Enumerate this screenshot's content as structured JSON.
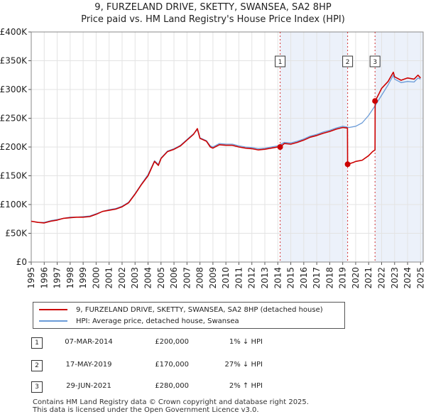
{
  "title_line1": "9, FURZELAND DRIVE, SKETTY, SWANSEA, SA2 8HP",
  "title_line2": "Price paid vs. HM Land Registry's House Price Index (HPI)",
  "chart_data": {
    "type": "line",
    "title": "9, FURZELAND DRIVE, SKETTY, SWANSEA, SA2 8HP",
    "subtitle": "Price paid vs. HM Land Registry's House Price Index (HPI)",
    "xlabel": "",
    "ylabel": "",
    "xlim": [
      1995.0,
      2025.2
    ],
    "ylim": [
      0,
      400000
    ],
    "y_ticks": [
      0,
      50000,
      100000,
      150000,
      200000,
      250000,
      300000,
      350000,
      400000
    ],
    "y_tick_labels": [
      "£0",
      "£50K",
      "£100K",
      "£150K",
      "£200K",
      "£250K",
      "£300K",
      "£350K",
      "£400K"
    ],
    "x_ticks": [
      1995,
      1996,
      1997,
      1998,
      1999,
      2000,
      2001,
      2002,
      2003,
      2004,
      2005,
      2006,
      2007,
      2008,
      2009,
      2010,
      2011,
      2012,
      2013,
      2014,
      2015,
      2016,
      2017,
      2018,
      2019,
      2020,
      2021,
      2022,
      2023,
      2024,
      2025
    ],
    "grid": true,
    "legend_position": "below",
    "series": [
      {
        "name": "9, FURZELAND DRIVE, SKETTY, SWANSEA, SA2 8HP (detached house)",
        "color": "#cc0000",
        "points": [
          [
            1995.0,
            71000
          ],
          [
            1995.5,
            69000
          ],
          [
            1996.0,
            68000
          ],
          [
            1996.5,
            71000
          ],
          [
            1997.0,
            73000
          ],
          [
            1997.5,
            76000
          ],
          [
            1998.0,
            77000
          ],
          [
            1998.5,
            78000
          ],
          [
            1999.0,
            78000
          ],
          [
            1999.5,
            79000
          ],
          [
            2000.0,
            83000
          ],
          [
            2000.5,
            88000
          ],
          [
            2001.0,
            90000
          ],
          [
            2001.5,
            92000
          ],
          [
            2002.0,
            96000
          ],
          [
            2002.5,
            103000
          ],
          [
            2003.0,
            118000
          ],
          [
            2003.5,
            135000
          ],
          [
            2004.0,
            150000
          ],
          [
            2004.5,
            175000
          ],
          [
            2004.8,
            168000
          ],
          [
            2005.0,
            180000
          ],
          [
            2005.5,
            192000
          ],
          [
            2006.0,
            196000
          ],
          [
            2006.5,
            202000
          ],
          [
            2007.0,
            212000
          ],
          [
            2007.5,
            222000
          ],
          [
            2007.8,
            232000
          ],
          [
            2008.0,
            215000
          ],
          [
            2008.5,
            210000
          ],
          [
            2008.8,
            200000
          ],
          [
            2009.0,
            198000
          ],
          [
            2009.5,
            204000
          ],
          [
            2010.0,
            203000
          ],
          [
            2010.5,
            203000
          ],
          [
            2011.0,
            200000
          ],
          [
            2011.5,
            198000
          ],
          [
            2012.0,
            197000
          ],
          [
            2012.5,
            195000
          ],
          [
            2013.0,
            196000
          ],
          [
            2013.5,
            198000
          ],
          [
            2014.0,
            200000
          ],
          [
            2014.18,
            200000
          ],
          [
            2014.5,
            206000
          ],
          [
            2015.0,
            205000
          ],
          [
            2015.5,
            208000
          ],
          [
            2016.0,
            212000
          ],
          [
            2016.5,
            217000
          ],
          [
            2017.0,
            220000
          ],
          [
            2017.5,
            224000
          ],
          [
            2018.0,
            227000
          ],
          [
            2018.5,
            231000
          ],
          [
            2019.0,
            234000
          ],
          [
            2019.37,
            233000
          ],
          [
            2019.38,
            170000
          ],
          [
            2019.8,
            173000
          ],
          [
            2020.0,
            175000
          ],
          [
            2020.5,
            177000
          ],
          [
            2021.0,
            185000
          ],
          [
            2021.3,
            192000
          ],
          [
            2021.49,
            195000
          ],
          [
            2021.5,
            280000
          ],
          [
            2021.8,
            293000
          ],
          [
            2022.0,
            302000
          ],
          [
            2022.5,
            314000
          ],
          [
            2022.9,
            330000
          ],
          [
            2023.0,
            322000
          ],
          [
            2023.5,
            316000
          ],
          [
            2024.0,
            320000
          ],
          [
            2024.5,
            318000
          ],
          [
            2024.8,
            325000
          ],
          [
            2025.0,
            320000
          ]
        ]
      },
      {
        "name": "HPI: Average price, detached house, Swansea",
        "color": "#6a9bd8",
        "points": [
          [
            1995.0,
            71000
          ],
          [
            1995.5,
            69000
          ],
          [
            1996.0,
            69000
          ],
          [
            1996.5,
            72000
          ],
          [
            1997.0,
            74000
          ],
          [
            1997.5,
            76000
          ],
          [
            1998.0,
            78000
          ],
          [
            1998.5,
            78000
          ],
          [
            1999.0,
            79000
          ],
          [
            1999.5,
            80000
          ],
          [
            2000.0,
            84000
          ],
          [
            2000.5,
            88000
          ],
          [
            2001.0,
            91000
          ],
          [
            2001.5,
            93000
          ],
          [
            2002.0,
            97000
          ],
          [
            2002.5,
            104000
          ],
          [
            2003.0,
            119000
          ],
          [
            2003.5,
            136000
          ],
          [
            2004.0,
            152000
          ],
          [
            2004.5,
            176000
          ],
          [
            2004.8,
            170000
          ],
          [
            2005.0,
            181000
          ],
          [
            2005.5,
            193000
          ],
          [
            2006.0,
            197000
          ],
          [
            2006.5,
            203000
          ],
          [
            2007.0,
            213000
          ],
          [
            2007.5,
            223000
          ],
          [
            2007.8,
            230000
          ],
          [
            2008.0,
            216000
          ],
          [
            2008.5,
            211000
          ],
          [
            2008.8,
            202000
          ],
          [
            2009.0,
            200000
          ],
          [
            2009.5,
            206000
          ],
          [
            2010.0,
            205000
          ],
          [
            2010.5,
            205000
          ],
          [
            2011.0,
            202000
          ],
          [
            2011.5,
            200000
          ],
          [
            2012.0,
            199000
          ],
          [
            2012.5,
            197000
          ],
          [
            2013.0,
            198000
          ],
          [
            2013.5,
            200000
          ],
          [
            2014.0,
            202000
          ],
          [
            2014.5,
            208000
          ],
          [
            2015.0,
            207000
          ],
          [
            2015.5,
            210000
          ],
          [
            2016.0,
            214000
          ],
          [
            2016.5,
            219000
          ],
          [
            2017.0,
            222000
          ],
          [
            2017.5,
            226000
          ],
          [
            2018.0,
            229000
          ],
          [
            2018.5,
            233000
          ],
          [
            2019.0,
            236000
          ],
          [
            2019.5,
            234000
          ],
          [
            2020.0,
            236000
          ],
          [
            2020.5,
            242000
          ],
          [
            2021.0,
            255000
          ],
          [
            2021.5,
            272000
          ],
          [
            2022.0,
            290000
          ],
          [
            2022.5,
            308000
          ],
          [
            2022.9,
            325000
          ],
          [
            2023.0,
            318000
          ],
          [
            2023.5,
            312000
          ],
          [
            2024.0,
            314000
          ],
          [
            2024.5,
            313000
          ],
          [
            2024.8,
            320000
          ],
          [
            2025.0,
            318000
          ]
        ]
      }
    ],
    "annotations": [
      {
        "label": "1",
        "x": 2014.18,
        "value": 200000
      },
      {
        "label": "2",
        "x": 2019.38,
        "value": 170000
      },
      {
        "label": "3",
        "x": 2021.49,
        "value": 280000
      }
    ],
    "shaded_regions": [
      [
        2014.18,
        2019.38
      ],
      [
        2021.49,
        2025.2
      ]
    ]
  },
  "legend": {
    "property_label": "9, FURZELAND DRIVE, SKETTY, SWANSEA, SA2 8HP (detached house)",
    "hpi_label": "HPI: Average price, detached house, Swansea",
    "property_color": "#cc0000",
    "hpi_color": "#6a9bd8"
  },
  "sales": [
    {
      "num": "1",
      "date": "07-MAR-2014",
      "price": "£200,000",
      "hpi": "1% ↓ HPI"
    },
    {
      "num": "2",
      "date": "17-MAY-2019",
      "price": "£170,000",
      "hpi": "27% ↓ HPI"
    },
    {
      "num": "3",
      "date": "29-JUN-2021",
      "price": "£280,000",
      "hpi": "2% ↑ HPI"
    }
  ],
  "footer_line1": "Contains HM Land Registry data © Crown copyright and database right 2025.",
  "footer_line2": "This data is licensed under the Open Government Licence v3.0."
}
